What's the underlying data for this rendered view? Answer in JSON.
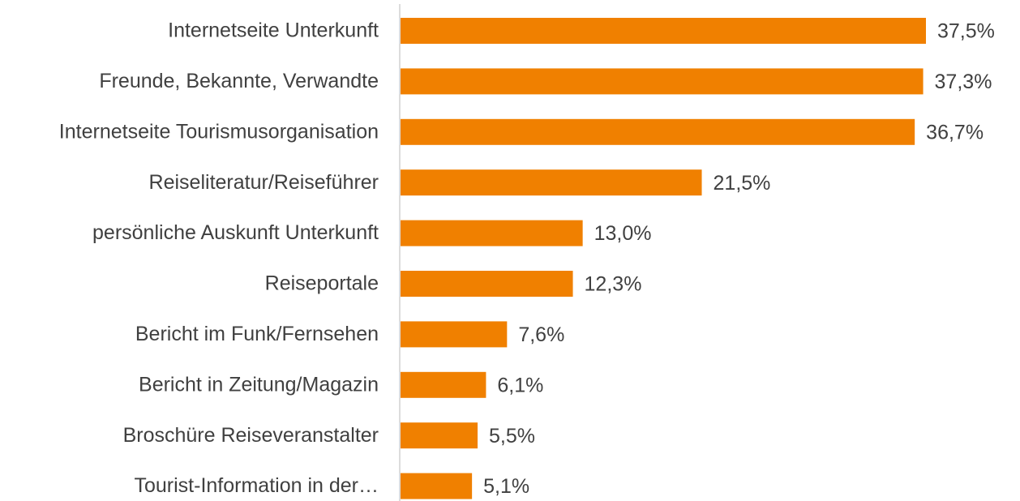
{
  "chart_data": {
    "type": "bar",
    "orientation": "horizontal",
    "categories": [
      "Internetseite Unterkunft",
      "Freunde, Bekannte, Verwandte",
      "Internetseite Tourismusorganisation",
      "Reiseliteratur/Reiseführer",
      "persönliche Auskunft Unterkunft",
      "Reiseportale",
      "Bericht im Funk/Fernsehen",
      "Bericht in Zeitung/Magazin",
      "Broschüre Reiseveranstalter",
      "Tourist-Information in der…"
    ],
    "values": [
      37.5,
      37.3,
      36.7,
      21.5,
      13.0,
      12.3,
      7.6,
      6.1,
      5.5,
      5.1
    ],
    "value_labels": [
      "37,5%",
      "37,3%",
      "36,7%",
      "21,5%",
      "13,0%",
      "12,3%",
      "7,6%",
      "6,1%",
      "5,5%",
      "5,1%"
    ],
    "color": "#f08000"
  }
}
